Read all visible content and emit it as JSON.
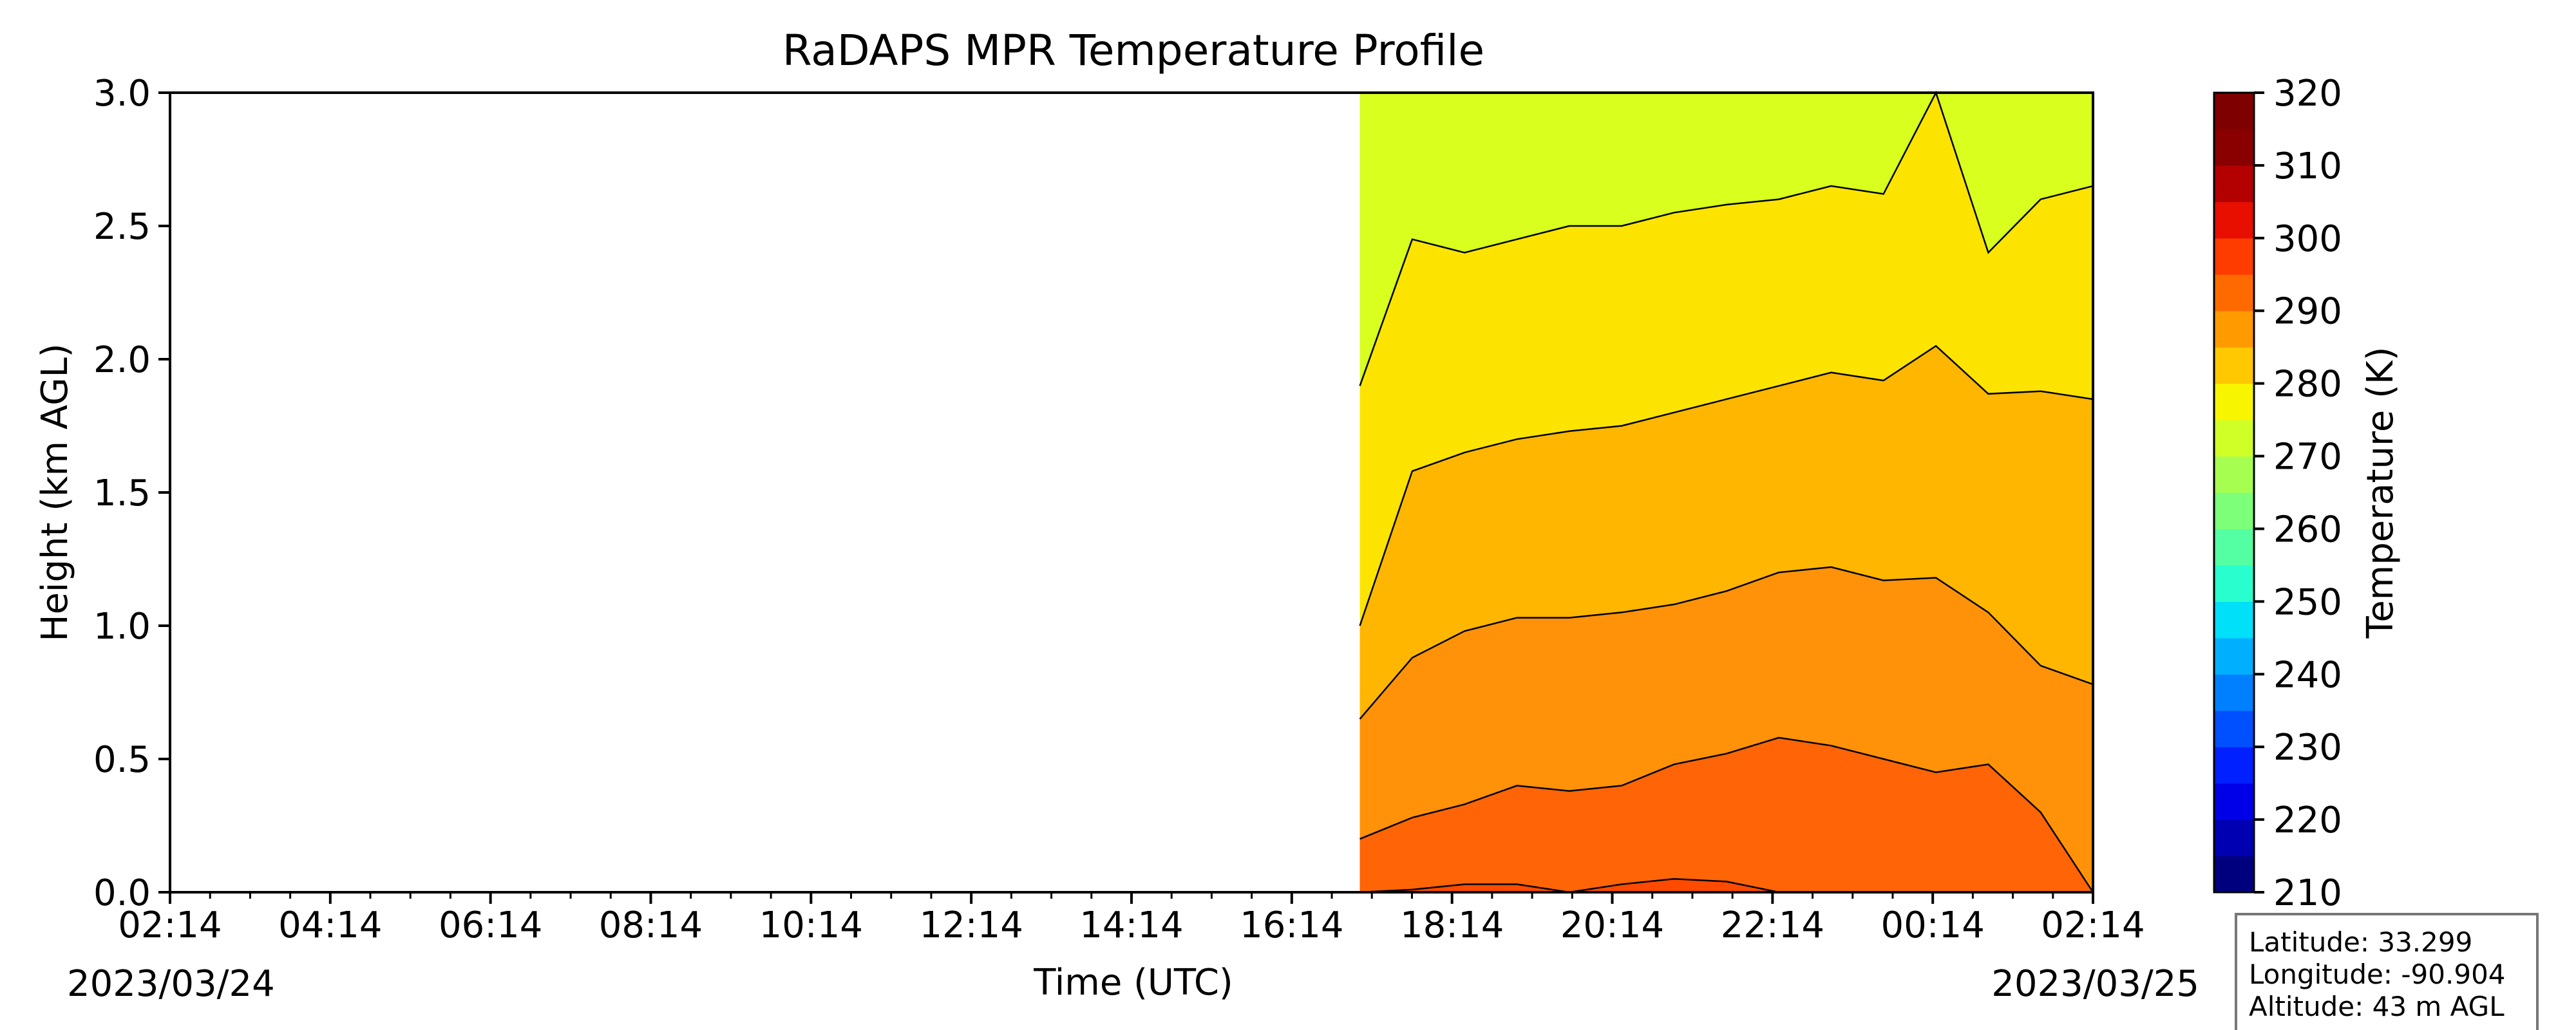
{
  "chart_data": {
    "type": "heatmap",
    "title": "RaDAPS MPR Temperature Profile",
    "xlabel": "Time (UTC)",
    "ylabel": "Height (km AGL)",
    "x_ticks": [
      "02:14",
      "04:14",
      "06:14",
      "08:14",
      "10:14",
      "12:14",
      "14:14",
      "16:14",
      "18:14",
      "20:14",
      "22:14",
      "00:14",
      "02:14"
    ],
    "date_start": "2023/03/24",
    "date_end": "2023/03/25",
    "ylim": [
      0,
      3.0
    ],
    "y_ticks": [
      "0.0",
      "0.5",
      "1.0",
      "1.5",
      "2.0",
      "2.5",
      "3.0"
    ],
    "data_start_time": "17:05",
    "data_end_time": "02:14",
    "contour_levels_K": [
      285,
      290,
      295,
      300,
      305
    ],
    "contour_heights_km": [
      {
        "level": 305,
        "values": [
          0,
          0.01,
          0.03,
          0.03,
          0.0,
          0.03,
          0.05,
          0.04,
          0.0,
          0.0,
          0.0,
          0.0,
          0.0,
          0.0,
          0.0
        ]
      },
      {
        "level": 300,
        "values": [
          0.2,
          0.28,
          0.33,
          0.4,
          0.38,
          0.4,
          0.48,
          0.52,
          0.58,
          0.55,
          0.5,
          0.45,
          0.48,
          0.3,
          0.0
        ]
      },
      {
        "level": 295,
        "values": [
          0.65,
          0.88,
          0.98,
          1.03,
          1.03,
          1.05,
          1.08,
          1.13,
          1.2,
          1.22,
          1.17,
          1.18,
          1.05,
          0.85,
          0.78
        ]
      },
      {
        "level": 290,
        "values": [
          1.0,
          1.58,
          1.65,
          1.7,
          1.73,
          1.75,
          1.8,
          1.85,
          1.9,
          1.95,
          1.92,
          2.05,
          1.87,
          1.88,
          1.85
        ]
      },
      {
        "level": 285,
        "values": [
          1.9,
          2.45,
          2.4,
          2.45,
          2.5,
          2.5,
          2.55,
          2.58,
          2.6,
          2.65,
          2.62,
          3.0,
          2.4,
          2.6,
          2.65
        ]
      }
    ],
    "colorbar": {
      "label": "Temperature (K)",
      "range": [
        210,
        320
      ],
      "step": 5,
      "tick_labels": [
        "210",
        "220",
        "230",
        "240",
        "250",
        "260",
        "270",
        "280",
        "290",
        "300",
        "310",
        "320"
      ],
      "colors": [
        "#00007f",
        "#0000b2",
        "#0000e8",
        "#0020ff",
        "#0050ff",
        "#0080ff",
        "#00b0ff",
        "#00e0f8",
        "#29ffce",
        "#54ffa3",
        "#7dff7a",
        "#a6ff50",
        "#d0ff27",
        "#f8f500",
        "#ffc800",
        "#ff9a00",
        "#ff6a00",
        "#ff3c00",
        "#e80e00",
        "#b30000",
        "#8a0000",
        "#7f0000"
      ],
      "band_colors_by_level": {
        "280": "#d8ff1e",
        "285": "#fde400",
        "290": "#ffb600",
        "295": "#ff9208",
        "300": "#ff6406",
        "305": "#ff4a00"
      }
    }
  },
  "info_box": {
    "latitude": "Latitude: 33.299",
    "longitude": "Longitude: -90.904",
    "altitude": "Altitude: 43 m AGL"
  }
}
